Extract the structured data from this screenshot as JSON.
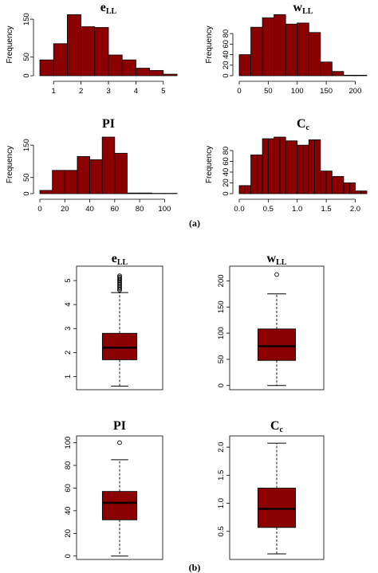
{
  "figure": {
    "panel_labels": [
      "(a)",
      "(b)"
    ],
    "colors": {
      "fill": "#8b0000",
      "stroke": "#000000"
    }
  },
  "chart_data": [
    {
      "type": "histogram",
      "title_main": "e",
      "title_sub": "LL",
      "ylabel": "Frequency",
      "bin_edges": [
        0.5,
        1.0,
        1.5,
        2.0,
        2.5,
        3.0,
        3.5,
        4.0,
        4.5,
        5.0,
        5.5
      ],
      "counts": [
        42,
        85,
        162,
        130,
        128,
        55,
        42,
        20,
        14,
        4
      ],
      "xlim": [
        0.5,
        5.5
      ],
      "ylim": [
        0,
        165
      ],
      "xticks": [
        1,
        2,
        3,
        4,
        5
      ],
      "yticks": [
        0,
        50,
        150
      ]
    },
    {
      "type": "histogram",
      "title_main": "w",
      "title_sub": "LL",
      "ylabel": "Frequency",
      "bin_edges": [
        0,
        20,
        40,
        60,
        80,
        100,
        120,
        140,
        160,
        180,
        200,
        220
      ],
      "counts": [
        40,
        92,
        110,
        116,
        98,
        100,
        82,
        26,
        8,
        1,
        1
      ],
      "xlim": [
        0,
        220
      ],
      "ylim": [
        0,
        118
      ],
      "xticks": [
        0,
        50,
        100,
        150,
        200
      ],
      "yticks": [
        0,
        20,
        40,
        60,
        80
      ]
    },
    {
      "type": "histogram",
      "title_main": "PI",
      "title_sub": "",
      "ylabel": "Frequency",
      "bin_edges": [
        0,
        10,
        20,
        30,
        40,
        50,
        60,
        70,
        80,
        90,
        100,
        110
      ],
      "counts": [
        10,
        72,
        72,
        115,
        105,
        175,
        125,
        2,
        2,
        1,
        1
      ],
      "xlim": [
        0,
        110
      ],
      "ylim": [
        0,
        180
      ],
      "xticks": [
        0,
        20,
        40,
        60,
        80,
        100
      ],
      "yticks": [
        0,
        50,
        150
      ]
    },
    {
      "type": "histogram",
      "title_main": "C",
      "title_sub": "c",
      "ylabel": "Frequency",
      "bin_edges": [
        0.0,
        0.1,
        0.2,
        0.3,
        0.4,
        0.5,
        0.6,
        0.7,
        0.8,
        0.9,
        1.0,
        1.1,
        1.2,
        1.3,
        1.4,
        1.5,
        1.6,
        1.7,
        1.8,
        1.9,
        2.0,
        2.1,
        2.2
      ],
      "counts": [
        15,
        15,
        72,
        72,
        102,
        102,
        105,
        105,
        98,
        98,
        90,
        90,
        100,
        100,
        42,
        42,
        32,
        32,
        20,
        20,
        5,
        5
      ],
      "xlim": [
        0.0,
        2.2
      ],
      "ylim": [
        0,
        108
      ],
      "xticks": [
        0.0,
        0.5,
        1.0,
        1.5,
        2.0
      ],
      "yticks": [
        0,
        20,
        40,
        60,
        80
      ]
    },
    {
      "type": "boxplot",
      "title_main": "e",
      "title_sub": "LL",
      "whisker_low": 0.6,
      "q1": 1.7,
      "median": 2.2,
      "q3": 2.8,
      "whisker_high": 4.5,
      "outliers": [
        4.6,
        4.65,
        4.7,
        4.75,
        4.8,
        4.85,
        4.9,
        4.95,
        5.0,
        5.05,
        5.1,
        5.15,
        5.2
      ],
      "ylim": [
        0.45,
        5.6
      ],
      "yticks": [
        1,
        2,
        3,
        4,
        5
      ]
    },
    {
      "type": "boxplot",
      "title_main": "w",
      "title_sub": "LL",
      "whisker_low": 0,
      "q1": 48,
      "median": 75,
      "q3": 108,
      "whisker_high": 175,
      "outliers": [
        212
      ],
      "ylim": [
        -8,
        228
      ],
      "yticks": [
        0,
        50,
        100,
        150,
        200
      ]
    },
    {
      "type": "boxplot",
      "title_main": "PI",
      "title_sub": "",
      "whisker_low": 0,
      "q1": 32,
      "median": 47,
      "q3": 57,
      "whisker_high": 85,
      "outliers": [
        100
      ],
      "ylim": [
        -3,
        106
      ],
      "yticks": [
        0,
        20,
        40,
        60,
        80,
        100
      ]
    },
    {
      "type": "boxplot",
      "title_main": "C",
      "title_sub": "c",
      "whisker_low": 0.1,
      "q1": 0.57,
      "median": 0.9,
      "q3": 1.27,
      "whisker_high": 2.07,
      "outliers": [],
      "ylim": [
        0.0,
        2.2
      ],
      "yticks": [
        0.5,
        1.0,
        1.5,
        2.0
      ]
    }
  ]
}
